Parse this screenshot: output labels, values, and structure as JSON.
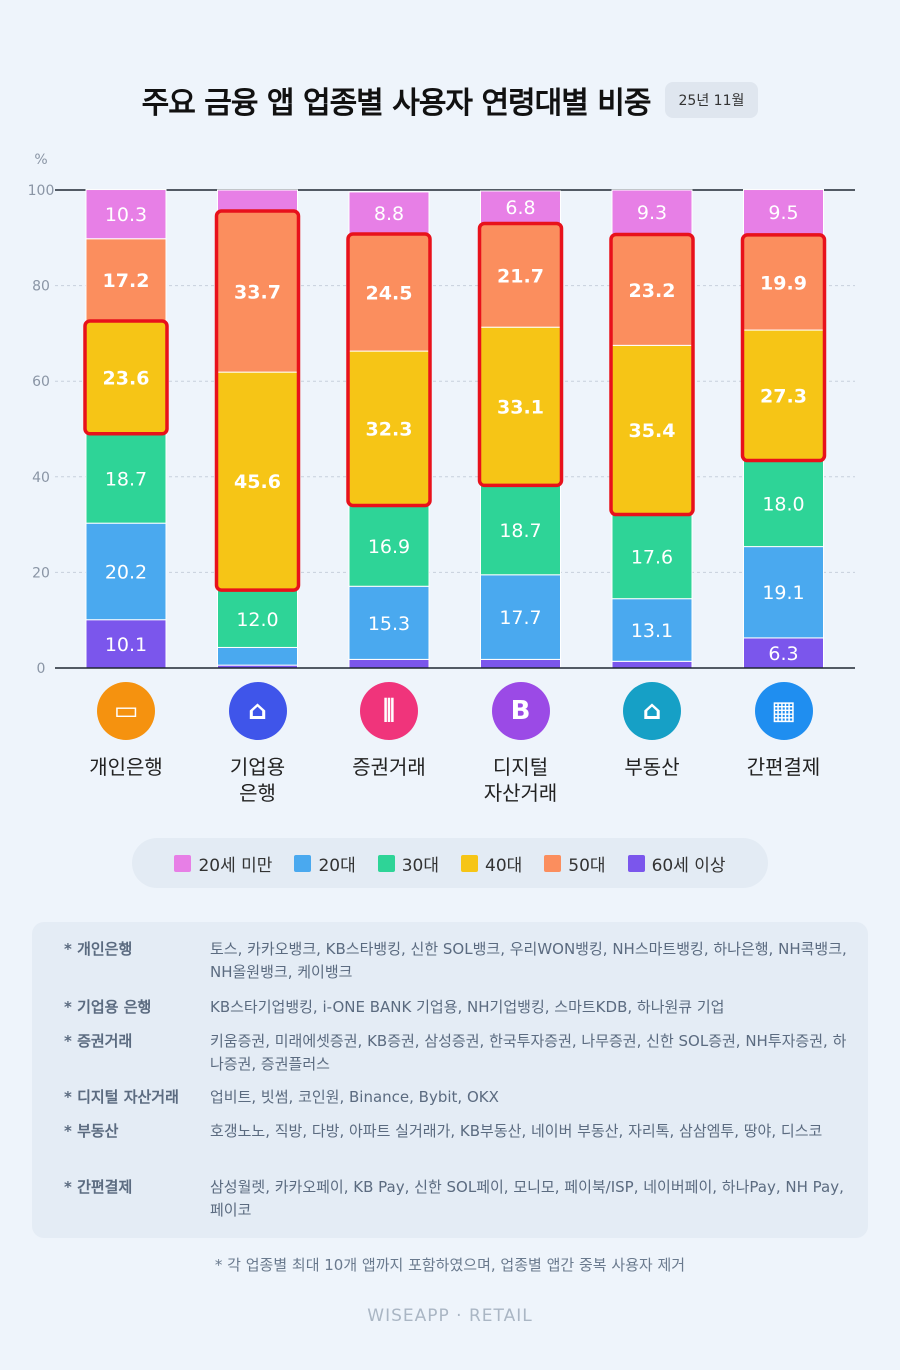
{
  "title": "주요 금융 앱 업종별 사용자 연령대별 비중",
  "date_badge": "25년 11월",
  "brand": "WISEAPP · RETAIL",
  "footnote": "* 각 업종별 최대 10개 앱까지 포함하였으며, 업종별 앱간 중복 사용자 제거",
  "colors": {
    "under20": "#e77fe6",
    "20s": "#4aa9ef",
    "30s": "#2ed497",
    "40s": "#f6c516",
    "50s": "#fb8e5e",
    "60plus": "#7b56ec",
    "highlight": "#e8111b"
  },
  "categories_ui": [
    {
      "label": "개인은행",
      "icon": "credit-card-icon",
      "color": "#f5920f",
      "glyph": "▭"
    },
    {
      "label": "기업용\n은행",
      "icon": "bank-icon",
      "color": "#3f55ea",
      "glyph": "⌂"
    },
    {
      "label": "증권거래",
      "icon": "candlestick-icon",
      "color": "#f0347b",
      "glyph": "⫼"
    },
    {
      "label": "디지털\n자산거래",
      "icon": "bitcoin-icon",
      "color": "#9b4ae6",
      "glyph": "B"
    },
    {
      "label": "부동산",
      "icon": "house-icon",
      "color": "#16a0c6",
      "glyph": "⌂"
    },
    {
      "label": "간편결제",
      "icon": "qr-icon",
      "color": "#1f8ef0",
      "glyph": "▦"
    }
  ],
  "legend": [
    {
      "label": "20세 미만",
      "key": "under20"
    },
    {
      "label": "20대",
      "key": "20s"
    },
    {
      "label": "30대",
      "key": "30s"
    },
    {
      "label": "40대",
      "key": "40s"
    },
    {
      "label": "50대",
      "key": "50s"
    },
    {
      "label": "60세 이상",
      "key": "60plus"
    }
  ],
  "notes": [
    {
      "key": "* 개인은행",
      "value": "토스, 카카오뱅크, KB스타뱅킹, 신한 SOL뱅크, 우리WON뱅킹, NH스마트뱅킹, 하나은행, NH콕뱅크, NH올원뱅크, 케이뱅크"
    },
    {
      "key": "* 기업용 은행",
      "value": "KB스타기업뱅킹, i-ONE BANK 기업용, NH기업뱅킹, 스마트KDB, 하나원큐 기업"
    },
    {
      "key": "* 증권거래",
      "value": "키움증권, 미래에셋증권, KB증권, 삼성증권, 한국투자증권, 나무증권, 신한 SOL증권, NH투자증권, 하나증권, 증권플러스"
    },
    {
      "key": "* 디지털 자산거래",
      "value": "업비트, 빗썸, 코인원, Binance, Bybit, OKX"
    },
    {
      "key": "* 부동산",
      "value": "호갱노노, 직방, 다방, 아파트 실거래가, KB부동산, 네이버 부동산, 자리톡, 삼삼엠투, 땅야, 디스코"
    },
    {
      "key": "* 간편결제",
      "value": "삼성월렛, 카카오페이, KB Pay, 신한 SOL페이, 모니모, 페이북/ISP, 네이버페이, 하나Pay, NH Pay, 페이코"
    }
  ],
  "chart_data": {
    "type": "bar",
    "stacked": true,
    "ylabel": "%",
    "ylim": [
      0,
      100
    ],
    "yticks": [
      0,
      20,
      40,
      60,
      80,
      100
    ],
    "categories": [
      "개인은행",
      "기업용 은행",
      "증권거래",
      "디지털 자산거래",
      "부동산",
      "간편결제"
    ],
    "series": [
      {
        "name": "60세 이상",
        "key": "60plus",
        "values": [
          10.1,
          0.6,
          1.8,
          1.8,
          1.4,
          6.3
        ],
        "labels": [
          "10.1",
          "",
          "",
          "",
          "",
          "6.3"
        ]
      },
      {
        "name": "20대",
        "key": "20s",
        "values": [
          20.2,
          3.7,
          15.3,
          17.7,
          13.1,
          19.1
        ],
        "labels": [
          "20.2",
          "",
          "15.3",
          "17.7",
          "13.1",
          "19.1"
        ]
      },
      {
        "name": "30대",
        "key": "30s",
        "values": [
          18.7,
          12.0,
          16.9,
          18.7,
          17.6,
          18.0
        ],
        "labels": [
          "18.7",
          "12.0",
          "16.9",
          "18.7",
          "17.6",
          "18.0"
        ]
      },
      {
        "name": "40대",
        "key": "40s",
        "values": [
          23.6,
          45.6,
          32.3,
          33.1,
          35.4,
          27.3
        ],
        "labels": [
          "23.6",
          "45.6",
          "32.3",
          "33.1",
          "35.4",
          "27.3"
        ]
      },
      {
        "name": "50대",
        "key": "50s",
        "values": [
          17.2,
          33.7,
          24.5,
          21.7,
          23.2,
          19.9
        ],
        "labels": [
          "17.2",
          "33.7",
          "24.5",
          "21.7",
          "23.2",
          "19.9"
        ]
      },
      {
        "name": "20세 미만",
        "key": "under20",
        "values": [
          10.3,
          4.4,
          8.8,
          6.8,
          9.3,
          9.5
        ],
        "labels": [
          "10.3",
          "",
          "8.8",
          "6.8",
          "9.3",
          "9.5"
        ]
      }
    ],
    "highlight": [
      {
        "category": "개인은행",
        "series": [
          "40대"
        ]
      },
      {
        "category": "기업용 은행",
        "series": [
          "40대",
          "50대"
        ]
      },
      {
        "category": "증권거래",
        "series": [
          "40대",
          "50대"
        ]
      },
      {
        "category": "디지털 자산거래",
        "series": [
          "40대",
          "50대"
        ]
      },
      {
        "category": "부동산",
        "series": [
          "40대",
          "50대"
        ]
      },
      {
        "category": "간편결제",
        "series": [
          "40대",
          "50대"
        ]
      }
    ],
    "grid": true
  }
}
